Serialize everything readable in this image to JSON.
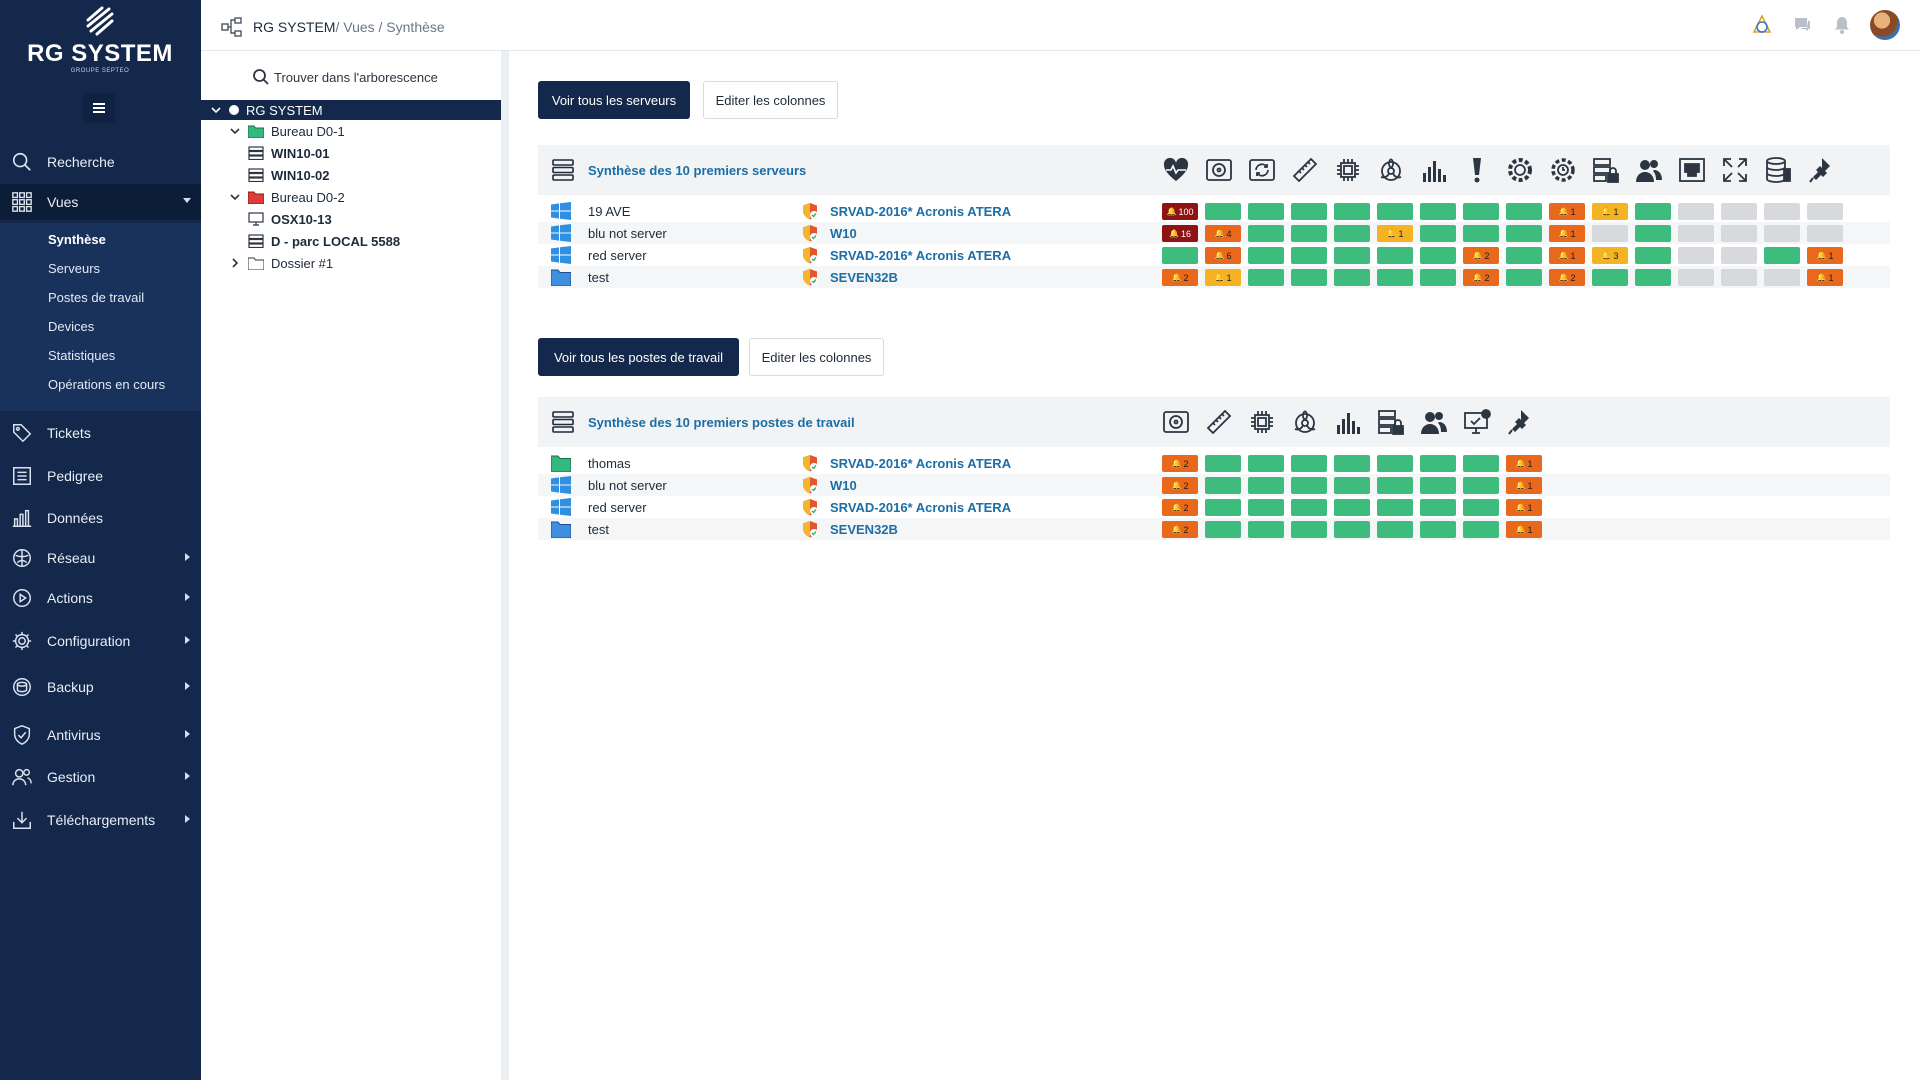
{
  "sidebar": {
    "logo_text": "RG SYSTEM",
    "logo_sub": "GROUPE SEPTEO",
    "nav": [
      {
        "label": "Recherche",
        "icon": "search-icon"
      },
      {
        "label": "Vues",
        "icon": "grid-icon"
      },
      {
        "label": "Tickets",
        "icon": "tag-icon"
      },
      {
        "label": "Pedigree",
        "icon": "list-icon"
      },
      {
        "label": "Données",
        "icon": "bar-chart-icon"
      },
      {
        "label": "Réseau",
        "icon": "network-icon"
      },
      {
        "label": "Actions",
        "icon": "play-icon"
      },
      {
        "label": "Configuration",
        "icon": "gear-icon"
      },
      {
        "label": "Backup",
        "icon": "database-icon"
      },
      {
        "label": "Antivirus",
        "icon": "shield-icon"
      },
      {
        "label": "Gestion",
        "icon": "users-icon"
      },
      {
        "label": "Téléchargements",
        "icon": "download-icon"
      }
    ],
    "subnav": [
      "Synthèse",
      "Serveurs",
      "Postes de travail",
      "Devices",
      "Statistiques",
      "Opérations en cours"
    ]
  },
  "topbar": {
    "breadcrumb_root": "RG SYSTEM",
    "breadcrumb_rest": " / Vues / Synthèse"
  },
  "tree": {
    "search_label": "Trouver dans l'arborescence",
    "nodes": [
      {
        "label": "RG SYSTEM"
      },
      {
        "label": "Bureau D0-1"
      },
      {
        "label": "WIN10-01"
      },
      {
        "label": "WIN10-02"
      },
      {
        "label": "Bureau D0-2"
      },
      {
        "label": "OSX10-13"
      },
      {
        "label": "D - parc LOCAL 5588"
      },
      {
        "label": "Dossier #1"
      }
    ]
  },
  "servers": {
    "btn_all": "Voir tous les serveurs",
    "btn_edit": "Editer les colonnes",
    "title": "Synthèse des 10 premiers serveurs",
    "columns": [
      "heartbeat-icon",
      "disk-icon",
      "backup-disk-icon",
      "ruler-icon",
      "cpu-icon",
      "biohazard-icon",
      "bar-chart-icon",
      "exclamation-icon",
      "gear-icon",
      "clock-gear-icon",
      "server-lock-icon",
      "users-icon",
      "network-port-icon",
      "fullscreen-icon",
      "database-icon",
      "plugin-icon"
    ],
    "rows": [
      {
        "os": "windows",
        "name": "19 AVE",
        "agent": "SRVAD-2016* Acronis ATERA",
        "cells": [
          [
            "darkred",
            "100"
          ],
          [
            "green",
            ""
          ],
          [
            "green",
            ""
          ],
          [
            "green",
            ""
          ],
          [
            "green",
            ""
          ],
          [
            "green",
            ""
          ],
          [
            "green",
            ""
          ],
          [
            "green",
            ""
          ],
          [
            "green",
            ""
          ],
          [
            "orange",
            "1"
          ],
          [
            "yellow",
            "1"
          ],
          [
            "green",
            ""
          ],
          [
            "gray",
            ""
          ],
          [
            "gray",
            ""
          ],
          [
            "gray",
            ""
          ],
          [
            "gray",
            ""
          ]
        ]
      },
      {
        "os": "windows",
        "name": "blu not server",
        "agent": "W10",
        "cells": [
          [
            "darkred",
            "16"
          ],
          [
            "orange",
            "4"
          ],
          [
            "green",
            ""
          ],
          [
            "green",
            ""
          ],
          [
            "green",
            ""
          ],
          [
            "yellow",
            "1"
          ],
          [
            "green",
            ""
          ],
          [
            "green",
            ""
          ],
          [
            "green",
            ""
          ],
          [
            "orange",
            "1"
          ],
          [
            "gray",
            ""
          ],
          [
            "green",
            ""
          ],
          [
            "gray",
            ""
          ],
          [
            "gray",
            ""
          ],
          [
            "gray",
            ""
          ],
          [
            "gray",
            ""
          ]
        ]
      },
      {
        "os": "windows",
        "name": "red server",
        "agent": "SRVAD-2016* Acronis ATERA",
        "cells": [
          [
            "green",
            ""
          ],
          [
            "orange",
            "6"
          ],
          [
            "green",
            ""
          ],
          [
            "green",
            ""
          ],
          [
            "green",
            ""
          ],
          [
            "green",
            ""
          ],
          [
            "green",
            ""
          ],
          [
            "orange",
            "2"
          ],
          [
            "green",
            ""
          ],
          [
            "orange",
            "1"
          ],
          [
            "yellow",
            "3"
          ],
          [
            "green",
            ""
          ],
          [
            "gray",
            ""
          ],
          [
            "gray",
            ""
          ],
          [
            "green",
            ""
          ],
          [
            "orange",
            "1"
          ]
        ]
      },
      {
        "os": "folder",
        "name": "test",
        "agent": "SEVEN32B",
        "cells": [
          [
            "orange",
            "2"
          ],
          [
            "yellow",
            "1"
          ],
          [
            "green",
            ""
          ],
          [
            "green",
            ""
          ],
          [
            "green",
            ""
          ],
          [
            "green",
            ""
          ],
          [
            "green",
            ""
          ],
          [
            "orange",
            "2"
          ],
          [
            "green",
            ""
          ],
          [
            "orange",
            "2"
          ],
          [
            "green",
            ""
          ],
          [
            "green",
            ""
          ],
          [
            "gray",
            ""
          ],
          [
            "gray",
            ""
          ],
          [
            "gray",
            ""
          ],
          [
            "orange",
            "1"
          ]
        ]
      }
    ]
  },
  "workstations": {
    "btn_all": "Voir tous les postes de travail",
    "btn_edit": "Editer les colonnes",
    "title": "Synthèse des 10 premiers postes de travail",
    "columns": [
      "disk-icon",
      "ruler-icon",
      "cpu-icon",
      "biohazard-icon",
      "bar-chart-icon",
      "server-lock-icon",
      "users-icon",
      "monitor-check-icon",
      "plugin-icon"
    ],
    "rows": [
      {
        "os": "folder-green",
        "name": "thomas",
        "agent": "SRVAD-2016* Acronis ATERA",
        "cells": [
          [
            "orange",
            "2"
          ],
          [
            "green",
            ""
          ],
          [
            "green",
            ""
          ],
          [
            "green",
            ""
          ],
          [
            "green",
            ""
          ],
          [
            "green",
            ""
          ],
          [
            "green",
            ""
          ],
          [
            "green",
            ""
          ],
          [
            "orange",
            "1"
          ]
        ]
      },
      {
        "os": "windows",
        "name": "blu not server",
        "agent": "W10",
        "cells": [
          [
            "orange",
            "2"
          ],
          [
            "green",
            ""
          ],
          [
            "green",
            ""
          ],
          [
            "green",
            ""
          ],
          [
            "green",
            ""
          ],
          [
            "green",
            ""
          ],
          [
            "green",
            ""
          ],
          [
            "green",
            ""
          ],
          [
            "orange",
            "1"
          ]
        ]
      },
      {
        "os": "windows",
        "name": "red server",
        "agent": "SRVAD-2016* Acronis ATERA",
        "cells": [
          [
            "orange",
            "2"
          ],
          [
            "green",
            ""
          ],
          [
            "green",
            ""
          ],
          [
            "green",
            ""
          ],
          [
            "green",
            ""
          ],
          [
            "green",
            ""
          ],
          [
            "green",
            ""
          ],
          [
            "green",
            ""
          ],
          [
            "orange",
            "1"
          ]
        ]
      },
      {
        "os": "folder",
        "name": "test",
        "agent": "SEVEN32B",
        "cells": [
          [
            "orange",
            "2"
          ],
          [
            "green",
            ""
          ],
          [
            "green",
            ""
          ],
          [
            "green",
            ""
          ],
          [
            "green",
            ""
          ],
          [
            "green",
            ""
          ],
          [
            "green",
            ""
          ],
          [
            "green",
            ""
          ],
          [
            "orange",
            "1"
          ]
        ]
      }
    ]
  }
}
